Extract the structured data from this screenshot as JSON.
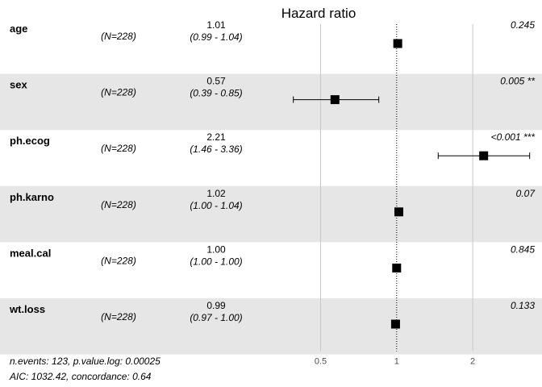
{
  "chart_data": {
    "type": "forest",
    "title": "Hazard ratio",
    "x_scale": "log",
    "xlim": [
      0.34,
      3.76
    ],
    "reference_line": 1,
    "ticks": [
      "0.5",
      "1",
      "2"
    ],
    "tick_values": [
      0.5,
      1,
      2
    ],
    "rows": [
      {
        "variable": "age",
        "n": "(N=228)",
        "hr_text": "1.01",
        "ci_text": "(0.99 - 1.04)",
        "p_text": "0.245",
        "estimate": 1.01,
        "lower": 0.99,
        "upper": 1.04
      },
      {
        "variable": "sex",
        "n": "(N=228)",
        "hr_text": "0.57",
        "ci_text": "(0.39 - 0.85)",
        "p_text": "0.005 **",
        "estimate": 0.57,
        "lower": 0.39,
        "upper": 0.85
      },
      {
        "variable": "ph.ecog",
        "n": "(N=228)",
        "hr_text": "2.21",
        "ci_text": "(1.46 - 3.36)",
        "p_text": "<0.001 ***",
        "estimate": 2.21,
        "lower": 1.46,
        "upper": 3.36
      },
      {
        "variable": "ph.karno",
        "n": "(N=228)",
        "hr_text": "1.02",
        "ci_text": "(1.00 - 1.04)",
        "p_text": "0.07",
        "estimate": 1.02,
        "lower": 1.0,
        "upper": 1.04
      },
      {
        "variable": "meal.cal",
        "n": "(N=228)",
        "hr_text": "1.00",
        "ci_text": "(1.00 - 1.00)",
        "p_text": "0.845",
        "estimate": 1.0,
        "lower": 1.0,
        "upper": 1.0
      },
      {
        "variable": "wt.loss",
        "n": "(N=228)",
        "hr_text": "0.99",
        "ci_text": "(0.97 - 1.00)",
        "p_text": "0.133",
        "estimate": 0.99,
        "lower": 0.97,
        "upper": 1.0
      }
    ],
    "footer": [
      "n.events: 123, p.value.log: 0.00025",
      "AIC: 1032.42, concordance: 0.64"
    ]
  },
  "colors": {
    "band": "#e6e6e6",
    "background": "#ffffff",
    "gridline": "#c8c8c8",
    "marker": "#000000",
    "tick_text": "#4d4d4d"
  }
}
